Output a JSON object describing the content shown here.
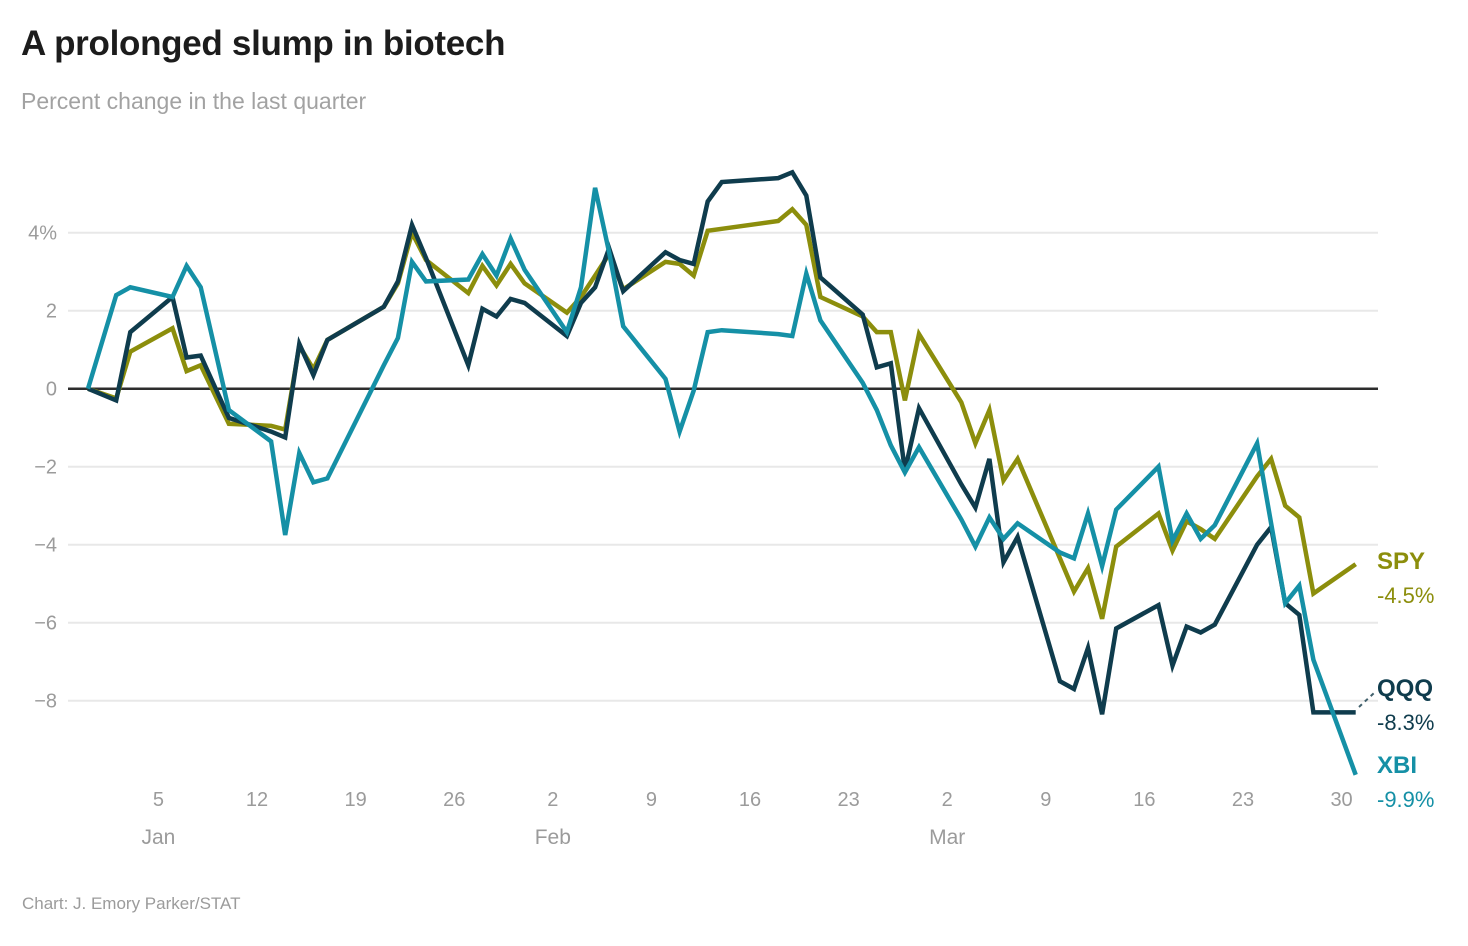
{
  "header": {
    "title": "A prolonged slump in biotech",
    "subtitle": "Percent change in the last quarter"
  },
  "caption": "Chart: J. Emory Parker/STAT",
  "colors": {
    "spy": "#8c8e0c",
    "qqq": "#0f3c4d",
    "xbi": "#1590a6",
    "grid_line": "#e8e8e8",
    "zero_line": "#2d2d2d",
    "axis_text": "#9b9b9b",
    "title_text": "#1c1c1c",
    "subtitle_text": "#a2a2a2",
    "leader_line": "#41606c"
  },
  "chart_data": {
    "type": "line",
    "title": "A prolonged slump in biotech",
    "subtitle": "Percent change in the last quarter",
    "xlabel": "",
    "ylabel": "Percent change",
    "grid": true,
    "legend_position": "right",
    "ylim": [
      -10.3,
      5.8
    ],
    "x_unit": "calendar days since Dec 31",
    "x": [
      0,
      2,
      3,
      6,
      7,
      8,
      10,
      13,
      14,
      15,
      16,
      17,
      21,
      22,
      23,
      24,
      27,
      28,
      29,
      30,
      31,
      34,
      35,
      36,
      37,
      38,
      41,
      42,
      43,
      44,
      45,
      49,
      50,
      51,
      52,
      55,
      56,
      57,
      58,
      59,
      62,
      63,
      64,
      65,
      66,
      69,
      70,
      71,
      72,
      73,
      76,
      77,
      78,
      79,
      80,
      83,
      84,
      85,
      86,
      87,
      90
    ],
    "dates": [
      "Dec 31",
      "Jan 2",
      "Jan 3",
      "Jan 6",
      "Jan 7",
      "Jan 8",
      "Jan 10",
      "Jan 13",
      "Jan 14",
      "Jan 15",
      "Jan 16",
      "Jan 17",
      "Jan 21",
      "Jan 22",
      "Jan 23",
      "Jan 24",
      "Jan 27",
      "Jan 28",
      "Jan 29",
      "Jan 30",
      "Jan 31",
      "Feb 3",
      "Feb 4",
      "Feb 5",
      "Feb 6",
      "Feb 7",
      "Feb 10",
      "Feb 11",
      "Feb 12",
      "Feb 13",
      "Feb 14",
      "Feb 18",
      "Feb 19",
      "Feb 20",
      "Feb 21",
      "Feb 24",
      "Feb 25",
      "Feb 26",
      "Feb 27",
      "Feb 28",
      "Mar 3",
      "Mar 4",
      "Mar 5",
      "Mar 6",
      "Mar 7",
      "Mar 10",
      "Mar 11",
      "Mar 12",
      "Mar 13",
      "Mar 14",
      "Mar 17",
      "Mar 18",
      "Mar 19",
      "Mar 20",
      "Mar 21",
      "Mar 24",
      "Mar 25",
      "Mar 26",
      "Mar 27",
      "Mar 28",
      "Mar 31"
    ],
    "series": [
      {
        "name": "SPY",
        "end_label": "-4.5%",
        "color": "#8c8e0c",
        "values": [
          0,
          -0.25,
          0.95,
          1.55,
          0.45,
          0.6,
          -0.9,
          -0.95,
          -1.05,
          1.1,
          0.5,
          1.25,
          2.1,
          2.7,
          4.0,
          3.3,
          2.45,
          3.15,
          2.65,
          3.2,
          2.7,
          1.95,
          2.35,
          2.9,
          3.45,
          2.55,
          3.25,
          3.2,
          2.9,
          4.05,
          4.1,
          4.3,
          4.6,
          4.2,
          2.35,
          1.85,
          1.45,
          1.45,
          -0.3,
          1.4,
          -0.35,
          -1.4,
          -0.55,
          -2.35,
          -1.8,
          -4.35,
          -5.2,
          -4.6,
          -5.9,
          -4.05,
          -3.2,
          -4.15,
          -3.4,
          -3.6,
          -3.85,
          -2.25,
          -1.8,
          -3.0,
          -3.3,
          -5.25,
          -4.5
        ]
      },
      {
        "name": "QQQ",
        "end_label": "-8.3%",
        "color": "#0f3c4d",
        "values": [
          0,
          -0.3,
          1.45,
          2.35,
          0.8,
          0.85,
          -0.75,
          -1.1,
          -1.25,
          1.15,
          0.35,
          1.25,
          2.1,
          2.75,
          4.2,
          3.35,
          0.6,
          2.05,
          1.85,
          2.3,
          2.2,
          1.35,
          2.2,
          2.6,
          3.6,
          2.5,
          3.5,
          3.3,
          3.2,
          4.8,
          5.3,
          5.4,
          5.55,
          4.95,
          2.85,
          1.9,
          0.55,
          0.65,
          -2.1,
          -0.5,
          -2.45,
          -3.05,
          -1.8,
          -4.45,
          -3.8,
          -7.5,
          -7.7,
          -6.65,
          -8.35,
          -6.15,
          -5.55,
          -7.1,
          -6.1,
          -6.25,
          -6.05,
          -4.0,
          -3.55,
          -5.5,
          -5.8,
          -8.3,
          -8.3
        ]
      },
      {
        "name": "XBI",
        "end_label": "-9.9%",
        "color": "#1590a6",
        "values": [
          0,
          2.4,
          2.6,
          2.35,
          3.15,
          2.6,
          -0.55,
          -1.35,
          -3.75,
          -1.65,
          -2.4,
          -2.3,
          0.6,
          1.3,
          3.25,
          2.75,
          2.8,
          3.45,
          2.9,
          3.85,
          3.05,
          1.45,
          2.6,
          5.15,
          3.5,
          1.6,
          0.25,
          -1.1,
          -0.05,
          1.45,
          1.5,
          1.4,
          1.35,
          2.95,
          1.75,
          0.15,
          -0.55,
          -1.45,
          -2.15,
          -1.5,
          -3.35,
          -4.05,
          -3.3,
          -3.85,
          -3.45,
          -4.2,
          -4.35,
          -3.2,
          -4.55,
          -3.1,
          -2.0,
          -3.9,
          -3.2,
          -3.85,
          -3.5,
          -1.4,
          -3.45,
          -5.5,
          -5.05,
          -6.95,
          -9.9
        ]
      }
    ],
    "y_ticks": [
      {
        "label": "4%",
        "value": 4
      },
      {
        "label": "2",
        "value": 2
      },
      {
        "label": "0",
        "value": 0
      },
      {
        "label": "−2",
        "value": -2
      },
      {
        "label": "−4",
        "value": -4
      },
      {
        "label": "−6",
        "value": -6
      },
      {
        "label": "−8",
        "value": -8
      }
    ],
    "x_ticks": [
      {
        "label": "5",
        "day": 5
      },
      {
        "label": "12",
        "day": 12
      },
      {
        "label": "19",
        "day": 19
      },
      {
        "label": "26",
        "day": 26
      },
      {
        "label": "2",
        "day": 33
      },
      {
        "label": "9",
        "day": 40
      },
      {
        "label": "16",
        "day": 47
      },
      {
        "label": "23",
        "day": 54
      },
      {
        "label": "2",
        "day": 61
      },
      {
        "label": "9",
        "day": 68
      },
      {
        "label": "16",
        "day": 75
      },
      {
        "label": "23",
        "day": 82
      },
      {
        "label": "30",
        "day": 89
      }
    ],
    "month_labels": [
      {
        "label": "Jan",
        "day": 5
      },
      {
        "label": "Feb",
        "day": 33
      },
      {
        "label": "Mar",
        "day": 61
      }
    ]
  }
}
